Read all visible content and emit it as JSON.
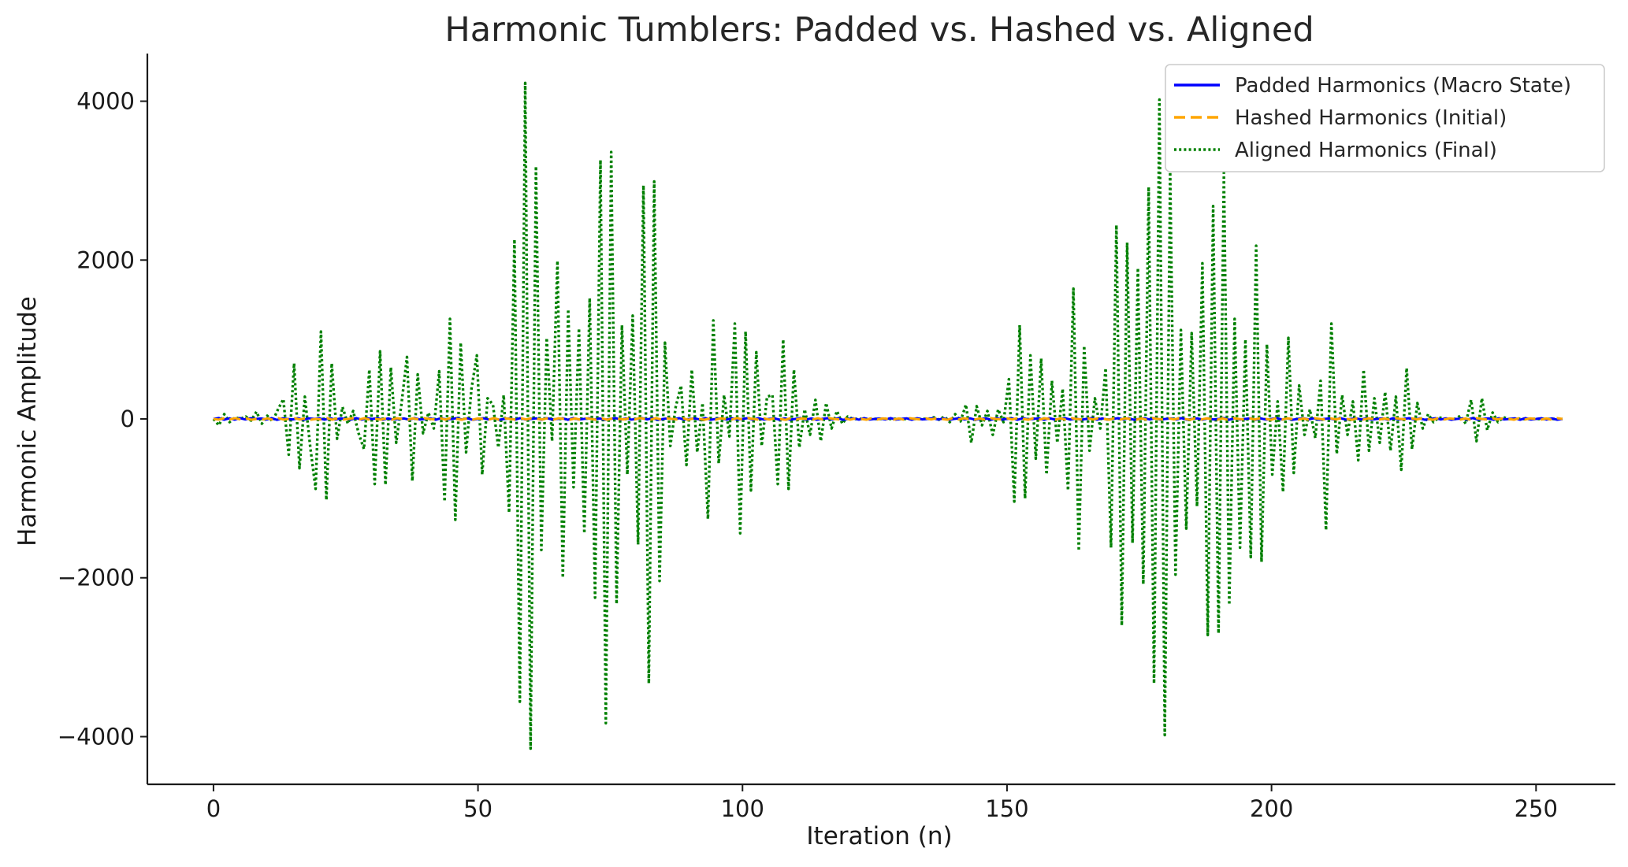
{
  "chart_data": {
    "type": "line",
    "title": "Harmonic Tumblers: Padded vs. Hashed vs. Aligned",
    "xlabel": "Iteration (n)",
    "ylabel": "Harmonic Amplitude",
    "xlim": [
      -12.5,
      265
    ],
    "ylim": [
      -4600,
      4600
    ],
    "xticks": [
      0,
      50,
      100,
      150,
      200,
      250
    ],
    "xtick_labels": [
      "0",
      "50",
      "100",
      "150",
      "200",
      "250"
    ],
    "yticks": [
      -4000,
      -2000,
      0,
      2000,
      4000
    ],
    "ytick_labels": [
      "−4000",
      "−2000",
      "0",
      "2000",
      "4000"
    ],
    "grid": false,
    "legend_position": "top-right",
    "series": [
      {
        "name": "Padded Harmonics (Macro State)",
        "color": "#0000ff",
        "style": "solid",
        "x_start": 0,
        "x_end": 255,
        "values": [
          0,
          12,
          -10,
          8,
          -9,
          11,
          -7,
          9,
          0,
          6,
          -8,
          10,
          -12,
          7,
          0,
          -6,
          9,
          -11,
          8,
          0,
          7,
          -9,
          10,
          -8,
          6,
          0,
          -7,
          11,
          -9,
          8,
          0,
          9,
          -10,
          7,
          -8,
          0,
          6,
          -9,
          11,
          -7,
          0,
          8,
          -10,
          9,
          -6,
          0,
          10,
          -8,
          7,
          -11,
          0,
          9,
          -7,
          8,
          -10,
          0,
          6,
          -9,
          11,
          -8,
          0,
          7,
          -10,
          9,
          -6,
          0,
          8,
          -11,
          10,
          -7,
          0,
          9,
          -8,
          6,
          -10,
          0,
          11,
          -9,
          7,
          -8,
          0,
          10,
          -6,
          9,
          -11,
          0,
          8,
          -7,
          10,
          -9,
          0,
          6,
          -8,
          11,
          -10,
          0,
          7,
          -9,
          8,
          -6,
          0,
          10,
          -11,
          9,
          -7,
          0,
          8,
          -10,
          6,
          -9,
          0,
          11,
          -8,
          7,
          -10,
          0,
          9,
          -6,
          8,
          -11,
          0,
          7,
          -9,
          10,
          -8,
          0,
          6,
          -7,
          11,
          -9,
          0,
          8,
          -10,
          9,
          -6,
          0,
          10,
          -8,
          7,
          -11,
          0,
          9,
          -7,
          8,
          -10,
          0,
          6,
          -9,
          11,
          -8,
          0,
          7,
          -10,
          9,
          -6,
          0,
          8,
          -11,
          10,
          -7,
          0,
          9,
          -8,
          6,
          -10,
          0,
          11,
          -9,
          7,
          -8,
          0,
          10,
          -6,
          9,
          -11,
          0,
          8,
          -7,
          10,
          -9,
          0,
          6,
          -8,
          11,
          -10,
          0,
          7,
          -9,
          8,
          -6,
          0,
          10,
          -11,
          9,
          -7,
          0,
          8,
          -10,
          6,
          -9,
          0,
          11,
          -8,
          7,
          -10,
          0,
          9,
          -6,
          8,
          -11,
          0,
          7,
          -9,
          10,
          -8,
          0,
          6,
          -7,
          11,
          -9,
          0,
          8,
          -10,
          9,
          -6,
          0,
          10,
          -8,
          7,
          -11,
          0,
          9,
          -7,
          8,
          -10,
          0,
          6,
          -9,
          11,
          -8,
          0,
          7,
          -10,
          9,
          -6,
          0,
          8,
          -11,
          10,
          -7,
          0,
          9,
          -8,
          6,
          -10,
          0
        ]
      },
      {
        "name": "Hashed Harmonics (Initial)",
        "color": "#ffa500",
        "style": "dashed",
        "x_start": 0,
        "x_end": 255,
        "values": [
          0,
          -8,
          10,
          -6,
          9,
          -7,
          8,
          -10,
          0,
          -9,
          7,
          -11,
          10,
          -8,
          0,
          9,
          -6,
          8,
          -10,
          0,
          -7,
          11,
          -9,
          6,
          -8,
          0,
          10,
          -7,
          9,
          -11,
          0,
          -8,
          6,
          -10,
          9,
          0,
          -11,
          8,
          -7,
          10,
          0,
          -6,
          9,
          -8,
          11,
          0,
          -10,
          7,
          -9,
          6,
          0,
          -8,
          10,
          -11,
          7,
          0,
          -9,
          8,
          -6,
          10,
          0,
          -7,
          11,
          -8,
          9,
          0,
          -10,
          6,
          -9,
          8,
          0,
          -11,
          7,
          -10,
          9,
          0,
          -6,
          8,
          -7,
          11,
          0,
          -9,
          10,
          -8,
          6,
          0,
          -7,
          9,
          -11,
          8,
          0,
          -10,
          6,
          -9,
          7,
          0,
          -8,
          11,
          -6,
          10,
          0,
          -9,
          7,
          -8,
          9,
          0,
          -11,
          10,
          -7,
          6,
          0,
          -8,
          9,
          -10,
          11,
          0,
          -6,
          7,
          -9,
          8,
          0,
          -10,
          11,
          -8,
          7,
          0,
          -9,
          6,
          -11,
          10,
          0,
          -7,
          8,
          -6,
          9,
          0,
          -10,
          11,
          -8,
          7,
          0,
          -9,
          6,
          -11,
          10,
          0,
          -7,
          8,
          -6,
          9,
          0,
          -10,
          11,
          -8,
          7,
          0,
          -9,
          6,
          -11,
          10,
          0,
          -7,
          8,
          -6,
          9,
          0,
          -10,
          11,
          -8,
          7,
          0,
          -9,
          6,
          -11,
          10,
          0,
          -7,
          8,
          -6,
          9,
          0,
          -10,
          11,
          -8,
          7,
          0,
          -9,
          6,
          -11,
          10,
          0,
          -7,
          8,
          -6,
          9,
          0,
          -10,
          11,
          -8,
          7,
          0,
          -9,
          6,
          -11,
          10,
          0,
          -7,
          8,
          -6,
          9,
          0,
          -10,
          11,
          -8,
          7,
          0,
          -9,
          6,
          -11,
          10,
          0,
          -7,
          8,
          -6,
          9,
          0,
          -10,
          11,
          -8,
          7,
          0,
          -9,
          6,
          -11,
          10,
          0,
          -7,
          8,
          -6,
          9,
          0,
          -10,
          11,
          -8,
          7,
          0,
          -9,
          6,
          -11,
          10,
          0
        ]
      },
      {
        "name": "Aligned Harmonics (Final)",
        "color": "#008000",
        "style": "dotted",
        "x_start": 0,
        "x_end": 255,
        "values": [
          0,
          -80,
          60,
          -40,
          20,
          0,
          30,
          -20,
          90,
          -60,
          40,
          -30,
          120,
          250,
          -450,
          700,
          -620,
          280,
          -350,
          -880,
          1100,
          -1020,
          700,
          -250,
          150,
          -60,
          100,
          -180,
          -380,
          620,
          -820,
          850,
          -830,
          650,
          -300,
          200,
          780,
          -780,
          560,
          -180,
          80,
          -120,
          600,
          -1040,
          1260,
          -1270,
          960,
          -420,
          380,
          800,
          -700,
          260,
          180,
          -360,
          300,
          -1180,
          2260,
          -3560,
          4230,
          -4150,
          3180,
          -1650,
          1020,
          -280,
          1990,
          -2000,
          1380,
          -860,
          1140,
          -1440,
          1520,
          -2250,
          3260,
          -3830,
          3360,
          -2330,
          1180,
          -700,
          1300,
          -1580,
          2940,
          -3330,
          2990,
          -2040,
          960,
          -340,
          150,
          420,
          -580,
          620,
          -420,
          200,
          -1260,
          1240,
          -560,
          300,
          -220,
          1200,
          -1440,
          1100,
          -900,
          840,
          -340,
          280,
          300,
          -820,
          1000,
          -880,
          620,
          -360,
          120,
          -200,
          240,
          -280,
          200,
          -120,
          100,
          -60,
          30,
          0,
          0,
          0,
          0,
          0,
          0,
          0,
          0,
          0,
          0,
          0,
          0,
          0,
          0,
          0,
          20,
          -10,
          30,
          -40,
          60,
          -30,
          180,
          -300,
          160,
          -80,
          100,
          -200,
          120,
          -40,
          500,
          -1040,
          1180,
          -1000,
          800,
          -500,
          760,
          -700,
          480,
          -300,
          380,
          -900,
          1640,
          -1660,
          920,
          -400,
          260,
          -120,
          640,
          -1620,
          2440,
          -2600,
          2220,
          -1560,
          1900,
          -2080,
          2920,
          -3330,
          4020,
          -3980,
          3110,
          -1960,
          1120,
          -1380,
          1080,
          -1100,
          1960,
          -2720,
          2680,
          -2700,
          3100,
          -2340,
          1260,
          -1620,
          1000,
          -1740,
          2180,
          -1800,
          940,
          -700,
          220,
          -920,
          1020,
          -680,
          420,
          -200,
          120,
          -240,
          480,
          -1400,
          1200,
          -440,
          300,
          -200,
          220,
          -520,
          620,
          -400,
          260,
          -300,
          340,
          -400,
          280,
          -640,
          640,
          -380,
          200,
          -120,
          60,
          -40,
          20,
          0,
          0,
          0,
          40,
          -60,
          240,
          -280,
          260,
          -140,
          80,
          -40,
          20,
          0,
          0,
          0,
          0,
          0,
          0,
          0,
          0,
          0,
          0,
          0
        ]
      }
    ]
  }
}
